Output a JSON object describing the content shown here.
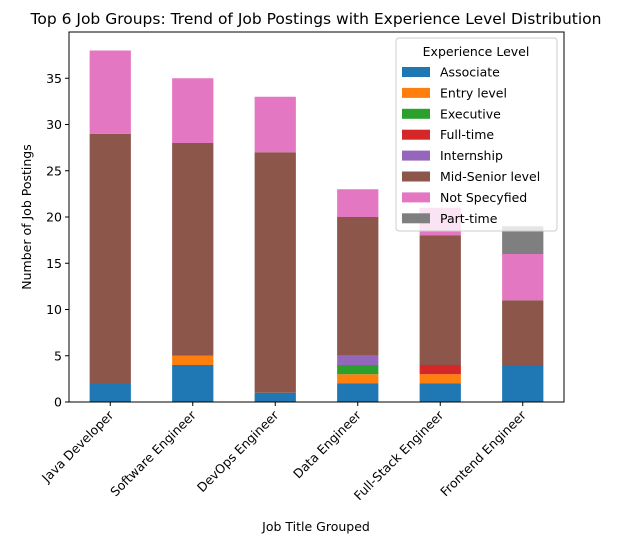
{
  "chart_data": {
    "type": "bar",
    "stacked": true,
    "title": "Top 6 Job Groups: Trend of Job Postings with Experience Level Distribution",
    "xlabel": "Job Title Grouped",
    "ylabel": "Number of Job Postings",
    "ylim": [
      0,
      40
    ],
    "yticks": [
      0,
      5,
      10,
      15,
      20,
      25,
      30,
      35
    ],
    "grid": false,
    "legend": {
      "title": "Experience Level",
      "placement": "top-right"
    },
    "categories": [
      "Java Developer",
      "Software Engineer",
      "DevOps Engineer",
      "Data Engineer",
      "Full-Stack Engineer",
      "Frontend Engineer"
    ],
    "series": [
      {
        "name": "Associate",
        "color": "#1f77b4",
        "values": [
          2,
          4,
          1,
          2,
          2,
          4
        ]
      },
      {
        "name": "Entry level",
        "color": "#ff7f0e",
        "values": [
          0,
          1,
          0,
          1,
          1,
          0
        ]
      },
      {
        "name": "Executive",
        "color": "#2ca02c",
        "values": [
          0,
          0,
          0,
          1,
          0,
          0
        ]
      },
      {
        "name": "Full-time",
        "color": "#d62728",
        "values": [
          0,
          0,
          0,
          0,
          1,
          0
        ]
      },
      {
        "name": "Internship",
        "color": "#9467bd",
        "values": [
          0,
          0,
          0,
          1,
          0,
          0
        ]
      },
      {
        "name": "Mid-Senior level",
        "color": "#8c564b",
        "values": [
          27,
          23,
          26,
          15,
          14,
          7
        ]
      },
      {
        "name": "Not Specyfied",
        "color": "#e377c2",
        "values": [
          9,
          7,
          6,
          3,
          3,
          5
        ]
      },
      {
        "name": "Part-time",
        "color": "#7f7f7f",
        "values": [
          0,
          0,
          0,
          0,
          0,
          3
        ]
      }
    ]
  }
}
